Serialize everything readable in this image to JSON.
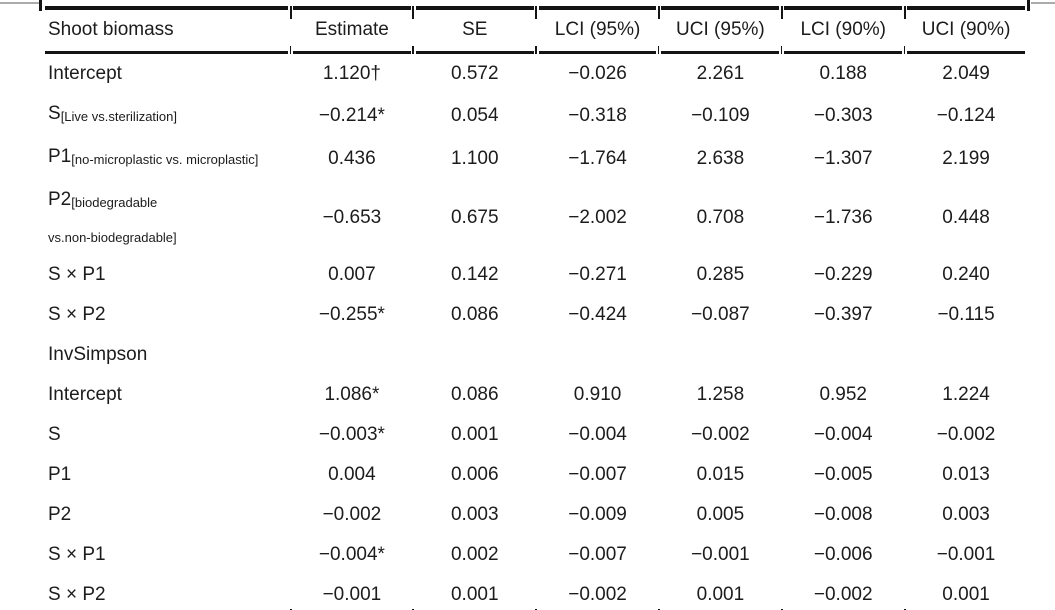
{
  "table": {
    "header": [
      "Shoot biomass",
      "Estimate",
      "SE",
      "LCI (95%)",
      "UCI (95%)",
      "LCI (90%)",
      "UCI (90%)"
    ],
    "rows": [
      {
        "main": "Intercept",
        "values": [
          "1.120†",
          "0.572",
          "−0.026",
          "2.261",
          "0.188",
          "2.049"
        ]
      },
      {
        "main": "S",
        "sub": "[Live vs.sterilization]",
        "values": [
          "−0.214*",
          "0.054",
          "−0.318",
          "−0.109",
          "−0.303",
          "−0.124"
        ]
      },
      {
        "main": "P1",
        "sub": "[no-microplastic vs. microplastic]",
        "values": [
          "0.436",
          "1.100",
          "−1.764",
          "2.638",
          "−1.307",
          "2.199"
        ]
      },
      {
        "main": "P2",
        "sub": "[biodegradable",
        "sub2": "vs.non-biodegradable]",
        "values": [
          "−0.653",
          "0.675",
          "−2.002",
          "0.708",
          "−1.736",
          "0.448"
        ]
      },
      {
        "main": "S × P1",
        "values": [
          "0.007",
          "0.142",
          "−0.271",
          "0.285",
          "−0.229",
          "0.240"
        ]
      },
      {
        "main": "S × P2",
        "values": [
          "−0.255*",
          "0.086",
          "−0.424",
          "−0.087",
          "−0.397",
          "−0.115"
        ]
      },
      {
        "main": "InvSimpson",
        "values": [
          "",
          "",
          "",
          "",
          "",
          ""
        ]
      },
      {
        "main": "Intercept",
        "values": [
          "1.086*",
          "0.086",
          "0.910",
          "1.258",
          "0.952",
          "1.224"
        ]
      },
      {
        "main": "S",
        "values": [
          "−0.003*",
          "0.001",
          "−0.004",
          "−0.002",
          "−0.004",
          "−0.002"
        ]
      },
      {
        "main": "P1",
        "values": [
          "0.004",
          "0.006",
          "−0.007",
          "0.015",
          "−0.005",
          "0.013"
        ]
      },
      {
        "main": "P2",
        "values": [
          "−0.002",
          "0.003",
          "−0.009",
          "0.005",
          "−0.008",
          "0.003"
        ]
      },
      {
        "main": "S × P1",
        "values": [
          "−0.004*",
          "0.002",
          "−0.007",
          "−0.001",
          "−0.006",
          "−0.001"
        ]
      },
      {
        "main": "S × P2",
        "values": [
          "−0.001",
          "0.001",
          "−0.002",
          "0.001",
          "−0.002",
          "0.001"
        ]
      }
    ]
  }
}
